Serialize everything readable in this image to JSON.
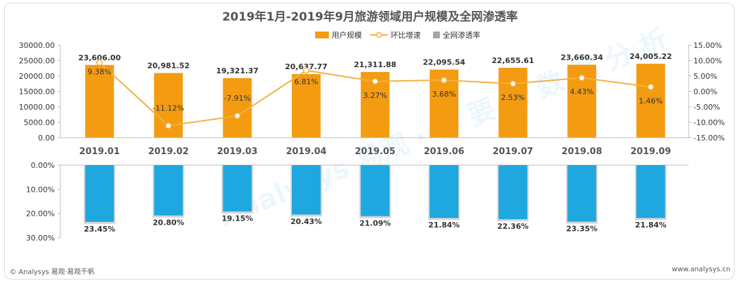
{
  "chart_data": {
    "type": "bar",
    "title": "2019年1月-2019年9月旅游领域用户规模及全网渗透率",
    "categories": [
      "2019.01",
      "2019.02",
      "2019.03",
      "2019.04",
      "2019.05",
      "2019.06",
      "2019.07",
      "2019.08",
      "2019.09"
    ],
    "series": [
      {
        "name": "用户规模",
        "chart": "bar",
        "axis": "left",
        "values": [
          23606.0,
          20981.52,
          19321.37,
          20637.77,
          21311.88,
          22095.54,
          22655.61,
          23660.34,
          24005.22
        ],
        "labels": [
          "23,606.00",
          "20,981.52",
          "19,321.37",
          "20,637.77",
          "21,311.88",
          "22,095.54",
          "22,655.61",
          "23,660.34",
          "24,005.22"
        ],
        "color": "#f39c12"
      },
      {
        "name": "环比增速",
        "chart": "line",
        "axis": "right",
        "values": [
          9.38,
          -11.12,
          -7.91,
          6.81,
          3.27,
          3.68,
          2.53,
          4.43,
          1.46
        ],
        "labels": [
          "9.38%",
          "-11.12%",
          "-7.91%",
          "6.81%",
          "3.27%",
          "3.68%",
          "2.53%",
          "4.43%",
          "1.46%"
        ],
        "color": "#f5b041"
      },
      {
        "name": "全网渗透率",
        "chart": "bar",
        "axis": "bottom",
        "values": [
          23.45,
          20.8,
          19.15,
          20.43,
          21.09,
          21.84,
          22.36,
          23.35,
          21.84
        ],
        "labels": [
          "23.45%",
          "20.80%",
          "19.15%",
          "20.43%",
          "21.09%",
          "21.84%",
          "22.36%",
          "23.35%",
          "21.84%"
        ],
        "color": "#1fa8e0"
      }
    ],
    "left_axis": {
      "min": 0,
      "max": 30000,
      "ticks": [
        "0.00",
        "5000.00",
        "10000.00",
        "15000.00",
        "20000.00",
        "25000.00",
        "30000.00"
      ]
    },
    "right_axis": {
      "min": -15,
      "max": 15,
      "ticks": [
        "-15.00%",
        "-10.00%",
        "-5.00%",
        "0.00%",
        "5.00%",
        "10.00%",
        "15.00%"
      ]
    },
    "bottom_axis": {
      "min": 0,
      "max": 30,
      "ticks": [
        "0.00%",
        "10.00%",
        "20.00%",
        "30.00%"
      ]
    },
    "legend_position": "top-center"
  },
  "footer": {
    "left": "© Analysys 易观·易观千帆",
    "right": "www.analysys.cn"
  },
  "watermark": "Analysys 易观 · 你 要 的 数 据 分 析"
}
